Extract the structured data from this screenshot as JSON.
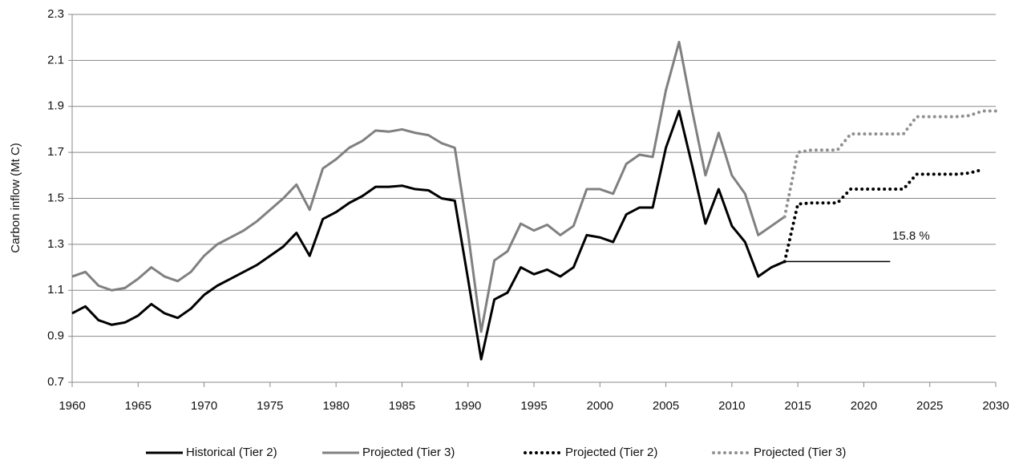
{
  "chart_data": {
    "type": "line",
    "y_label": "Carbon inflow (Mt C)",
    "xlim": [
      1960,
      2030
    ],
    "xticks": [
      1960,
      1965,
      1970,
      1975,
      1980,
      1985,
      1990,
      1995,
      2000,
      2005,
      2010,
      2015,
      2020,
      2025,
      2030
    ],
    "ylim": [
      0.7,
      2.3
    ],
    "yticks": [
      0.7,
      0.9,
      1.1,
      1.3,
      1.5,
      1.7,
      1.9,
      2.1,
      2.3
    ],
    "grid": true,
    "legend": "bottom",
    "series": [
      {
        "name": "Historical (Tier 2)",
        "color": "#000000",
        "style": "solid",
        "x": [
          1960,
          1961,
          1962,
          1963,
          1964,
          1965,
          1966,
          1967,
          1968,
          1969,
          1970,
          1971,
          1972,
          1973,
          1974,
          1975,
          1976,
          1977,
          1978,
          1979,
          1980,
          1981,
          1982,
          1983,
          1984,
          1985,
          1986,
          1987,
          1988,
          1989,
          1990,
          1991,
          1992,
          1993,
          1994,
          1995,
          1996,
          1997,
          1998,
          1999,
          2000,
          2001,
          2002,
          2003,
          2004,
          2005,
          2006,
          2007,
          2008,
          2009,
          2010,
          2011,
          2012,
          2013,
          2014
        ],
        "values": [
          1.0,
          1.03,
          0.97,
          0.95,
          0.96,
          0.99,
          1.04,
          1.0,
          0.98,
          1.02,
          1.08,
          1.12,
          1.15,
          1.18,
          1.21,
          1.25,
          1.29,
          1.35,
          1.25,
          1.41,
          1.44,
          1.48,
          1.51,
          1.55,
          1.55,
          1.555,
          1.54,
          1.535,
          1.5,
          1.49,
          1.15,
          0.8,
          1.06,
          1.09,
          1.2,
          1.17,
          1.19,
          1.16,
          1.2,
          1.34,
          1.33,
          1.31,
          1.43,
          1.46,
          1.46,
          1.72,
          1.88,
          1.64,
          1.39,
          1.54,
          1.38,
          1.31,
          1.16,
          1.2,
          1.225
        ]
      },
      {
        "name": "Projected (Tier 3)",
        "color": "#808080",
        "style": "solid",
        "x": [
          1960,
          1961,
          1962,
          1963,
          1964,
          1965,
          1966,
          1967,
          1968,
          1969,
          1970,
          1971,
          1972,
          1973,
          1974,
          1975,
          1976,
          1977,
          1978,
          1979,
          1980,
          1981,
          1982,
          1983,
          1984,
          1985,
          1986,
          1987,
          1988,
          1989,
          1990,
          1991,
          1992,
          1993,
          1994,
          1995,
          1996,
          1997,
          1998,
          1999,
          2000,
          2001,
          2002,
          2003,
          2004,
          2005,
          2006,
          2007,
          2008,
          2009,
          2010,
          2011,
          2012,
          2013,
          2014
        ],
        "values": [
          1.16,
          1.18,
          1.12,
          1.1,
          1.11,
          1.15,
          1.2,
          1.16,
          1.14,
          1.18,
          1.25,
          1.3,
          1.33,
          1.36,
          1.4,
          1.45,
          1.5,
          1.56,
          1.45,
          1.63,
          1.67,
          1.72,
          1.75,
          1.795,
          1.79,
          1.8,
          1.785,
          1.775,
          1.74,
          1.72,
          1.35,
          0.92,
          1.23,
          1.27,
          1.39,
          1.36,
          1.385,
          1.34,
          1.38,
          1.54,
          1.54,
          1.52,
          1.65,
          1.69,
          1.68,
          1.97,
          2.18,
          1.88,
          1.6,
          1.785,
          1.6,
          1.52,
          1.34,
          1.38,
          1.42
        ]
      },
      {
        "name": "Projected (Tier 2)",
        "color": "#000000",
        "style": "dotted",
        "x": [
          2014,
          2015,
          2016,
          2017,
          2018,
          2019,
          2020,
          2021,
          2022,
          2023,
          2024,
          2025,
          2026,
          2027,
          2028,
          2029
        ],
        "values": [
          1.225,
          1.475,
          1.48,
          1.48,
          1.48,
          1.54,
          1.54,
          1.54,
          1.54,
          1.54,
          1.605,
          1.605,
          1.605,
          1.605,
          1.61,
          1.625
        ]
      },
      {
        "name": "Projected (Tier 3)",
        "color": "#909090",
        "style": "dotted",
        "x": [
          2014,
          2015,
          2016,
          2017,
          2018,
          2019,
          2020,
          2021,
          2022,
          2023,
          2024,
          2025,
          2026,
          2027,
          2028,
          2029,
          2030
        ],
        "values": [
          1.42,
          1.7,
          1.71,
          1.71,
          1.71,
          1.78,
          1.78,
          1.78,
          1.78,
          1.78,
          1.855,
          1.855,
          1.855,
          1.855,
          1.86,
          1.88,
          1.88
        ]
      }
    ],
    "reference_line": {
      "y": 1.225,
      "x": [
        2014,
        2022
      ]
    },
    "annotation": "15.8 %"
  }
}
